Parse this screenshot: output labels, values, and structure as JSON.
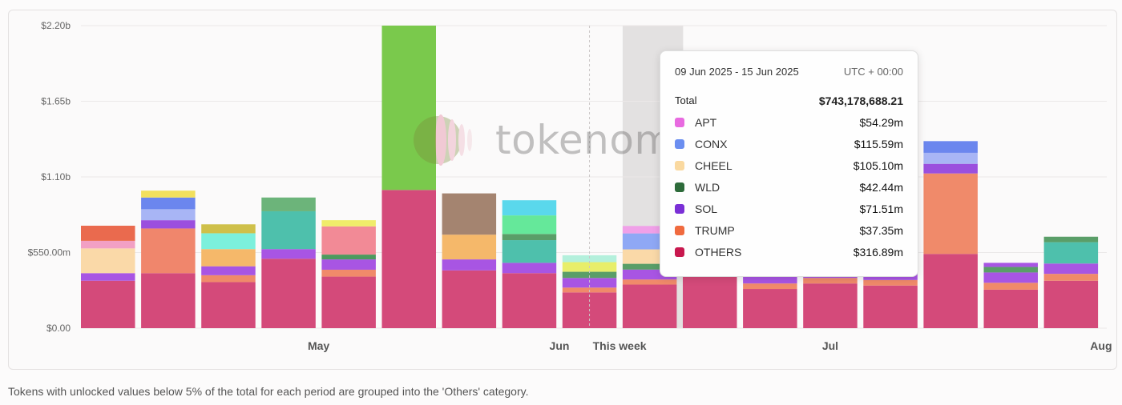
{
  "chart_data": {
    "type": "stacked-bar",
    "title": "",
    "y_ticks": [
      "$2.20b",
      "$1.65b",
      "$1.10b",
      "$550.00m",
      "$0.00"
    ],
    "ylim": [
      0,
      2200
    ],
    "y_unit": "millions USD",
    "x_labels": [
      {
        "text": "May",
        "bar_index": 3.5
      },
      {
        "text": "Jun",
        "bar_index": 7.5
      },
      {
        "text": "This week",
        "bar_index": 8.5
      },
      {
        "text": "Jul",
        "bar_index": 12
      },
      {
        "text": "Aug",
        "bar_index": 16.5
      }
    ],
    "this_week_marker_index": 8.5,
    "highlighted_bar_index": 9,
    "bars": [
      {
        "segments": [
          {
            "c": "#d44a7a",
            "v": 345
          },
          {
            "c": "#a855e3",
            "v": 55
          },
          {
            "c": "#fad9a8",
            "v": 180
          },
          {
            "c": "#f2a0c4",
            "v": 55
          },
          {
            "c": "#ea6a4e",
            "v": 110
          }
        ]
      },
      {
        "segments": [
          {
            "c": "#d44a7a",
            "v": 400
          },
          {
            "c": "#f0866c",
            "v": 325
          },
          {
            "c": "#9b4fde",
            "v": 60
          },
          {
            "c": "#a8b5f5",
            "v": 80
          },
          {
            "c": "#6b86ee",
            "v": 85
          },
          {
            "c": "#f2e05e",
            "v": 50
          }
        ]
      },
      {
        "segments": [
          {
            "c": "#d44a7a",
            "v": 335
          },
          {
            "c": "#f08a6a",
            "v": 50
          },
          {
            "c": "#a855e3",
            "v": 65
          },
          {
            "c": "#f5b86a",
            "v": 125
          },
          {
            "c": "#7cf0dc",
            "v": 115
          },
          {
            "c": "#cfc04a",
            "v": 65
          }
        ]
      },
      {
        "segments": [
          {
            "c": "#d44a7a",
            "v": 505
          },
          {
            "c": "#a855e3",
            "v": 70
          },
          {
            "c": "#4ec0ac",
            "v": 275
          },
          {
            "c": "#6cb47a",
            "v": 100
          }
        ]
      },
      {
        "segments": [
          {
            "c": "#d44a7a",
            "v": 375
          },
          {
            "c": "#f08a6a",
            "v": 50
          },
          {
            "c": "#a855e3",
            "v": 75
          },
          {
            "c": "#4d9a5e",
            "v": 35
          },
          {
            "c": "#f28a96",
            "v": 205
          },
          {
            "c": "#f0ec6a",
            "v": 45
          }
        ]
      },
      {
        "segments": [
          {
            "c": "#d44a7a",
            "v": 1005
          },
          {
            "c": "#7ac94c",
            "v": 1195
          }
        ]
      },
      {
        "segments": [
          {
            "c": "#d44a7a",
            "v": 420
          },
          {
            "c": "#a855e3",
            "v": 80
          },
          {
            "c": "#f5b86a",
            "v": 180
          },
          {
            "c": "#a48470",
            "v": 300
          }
        ]
      },
      {
        "segments": [
          {
            "c": "#d44a7a",
            "v": 400
          },
          {
            "c": "#a855e3",
            "v": 75
          },
          {
            "c": "#4ec0ac",
            "v": 165
          },
          {
            "c": "#5a9e68",
            "v": 45
          },
          {
            "c": "#65e89a",
            "v": 135
          },
          {
            "c": "#5ad8ec",
            "v": 110
          }
        ]
      },
      {
        "segments": [
          {
            "c": "#d44a7a",
            "v": 260
          },
          {
            "c": "#f08a6a",
            "v": 35
          },
          {
            "c": "#a855e3",
            "v": 70
          },
          {
            "c": "#5a9e68",
            "v": 45
          },
          {
            "c": "#e8ee6a",
            "v": 70
          },
          {
            "c": "#b4f0dc",
            "v": 50
          }
        ]
      },
      {
        "segments": [
          {
            "c": "#d44a7a",
            "v": 317
          },
          {
            "c": "#f08a6a",
            "v": 37
          },
          {
            "c": "#a855e3",
            "v": 72
          },
          {
            "c": "#5a9e68",
            "v": 42
          },
          {
            "c": "#fad9a8",
            "v": 105
          },
          {
            "c": "#8fa8f5",
            "v": 116
          },
          {
            "c": "#f0a0e8",
            "v": 54
          }
        ]
      },
      {
        "segments": [
          {
            "c": "#d44a7a",
            "v": 400
          },
          {
            "c": "#a855e3",
            "v": 90
          }
        ]
      },
      {
        "segments": [
          {
            "c": "#d44a7a",
            "v": 285
          },
          {
            "c": "#f08a6a",
            "v": 40
          },
          {
            "c": "#a855e3",
            "v": 70
          },
          {
            "c": "#5a9e68",
            "v": 45
          }
        ]
      },
      {
        "segments": [
          {
            "c": "#d44a7a",
            "v": 325
          },
          {
            "c": "#f08a6a",
            "v": 40
          },
          {
            "c": "#a855e3",
            "v": 60
          }
        ]
      },
      {
        "segments": [
          {
            "c": "#d44a7a",
            "v": 310
          },
          {
            "c": "#f08a6a",
            "v": 40
          },
          {
            "c": "#a855e3",
            "v": 60
          }
        ]
      },
      {
        "segments": [
          {
            "c": "#d44a7a",
            "v": 540
          },
          {
            "c": "#f08a6a",
            "v": 585
          },
          {
            "c": "#9b4fde",
            "v": 70
          },
          {
            "c": "#a8b5f5",
            "v": 80
          },
          {
            "c": "#6b86ee",
            "v": 85
          }
        ]
      },
      {
        "segments": [
          {
            "c": "#d44a7a",
            "v": 280
          },
          {
            "c": "#f08a6a",
            "v": 50
          },
          {
            "c": "#a855e3",
            "v": 75
          },
          {
            "c": "#5a9e68",
            "v": 40
          },
          {
            "c": "#a855e3",
            "v": 30
          }
        ]
      },
      {
        "segments": [
          {
            "c": "#d44a7a",
            "v": 345
          },
          {
            "c": "#f08a6a",
            "v": 50
          },
          {
            "c": "#a855e3",
            "v": 75
          },
          {
            "c": "#4ec0ac",
            "v": 155
          },
          {
            "c": "#5a9e68",
            "v": 40
          }
        ]
      }
    ],
    "watermark_text": "tokenomist"
  },
  "tooltip": {
    "date_range": "09 Jun 2025 - 15 Jun 2025",
    "timezone": "UTC + 00:00",
    "total_label": "Total",
    "total_value": "$743,178,688.21",
    "items": [
      {
        "name": "APT",
        "value": "$54.29m",
        "color": "#e86ae0"
      },
      {
        "name": "CONX",
        "value": "$115.59m",
        "color": "#6b8ef0"
      },
      {
        "name": "CHEEL",
        "value": "$105.10m",
        "color": "#fad9a0"
      },
      {
        "name": "WLD",
        "value": "$42.44m",
        "color": "#2d6b3a"
      },
      {
        "name": "SOL",
        "value": "$71.51m",
        "color": "#7a2fd6"
      },
      {
        "name": "TRUMP",
        "value": "$37.35m",
        "color": "#f06a3e"
      },
      {
        "name": "OTHERS",
        "value": "$316.89m",
        "color": "#c8184e"
      }
    ]
  },
  "footnote": "Tokens with unlocked values below 5% of the total for each period are grouped into the 'Others' category."
}
